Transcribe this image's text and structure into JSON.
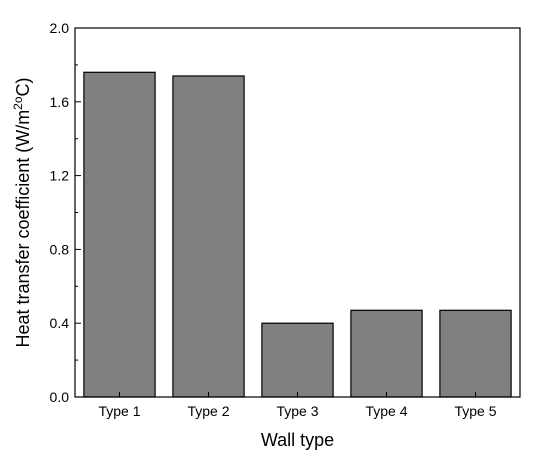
{
  "chart_data": {
    "type": "bar",
    "categories": [
      "Type 1",
      "Type 2",
      "Type 3",
      "Type 4",
      "Type 5"
    ],
    "values": [
      1.76,
      1.74,
      0.4,
      0.47,
      0.47
    ],
    "title": "",
    "xlabel": "Wall type",
    "ylabel_main": "Heat transfer coefficient (W/m",
    "ylabel_sup": "2o",
    "ylabel_tail": "C)",
    "ylim": [
      0,
      2.0
    ],
    "yticks": [
      0.0,
      0.4,
      0.8,
      1.2,
      1.6,
      2.0
    ],
    "ytick_labels": [
      "0.0",
      "0.4",
      "0.8",
      "1.2",
      "1.6",
      "2.0"
    ],
    "bar_color": "#808080",
    "grid": false,
    "legend": "none"
  }
}
